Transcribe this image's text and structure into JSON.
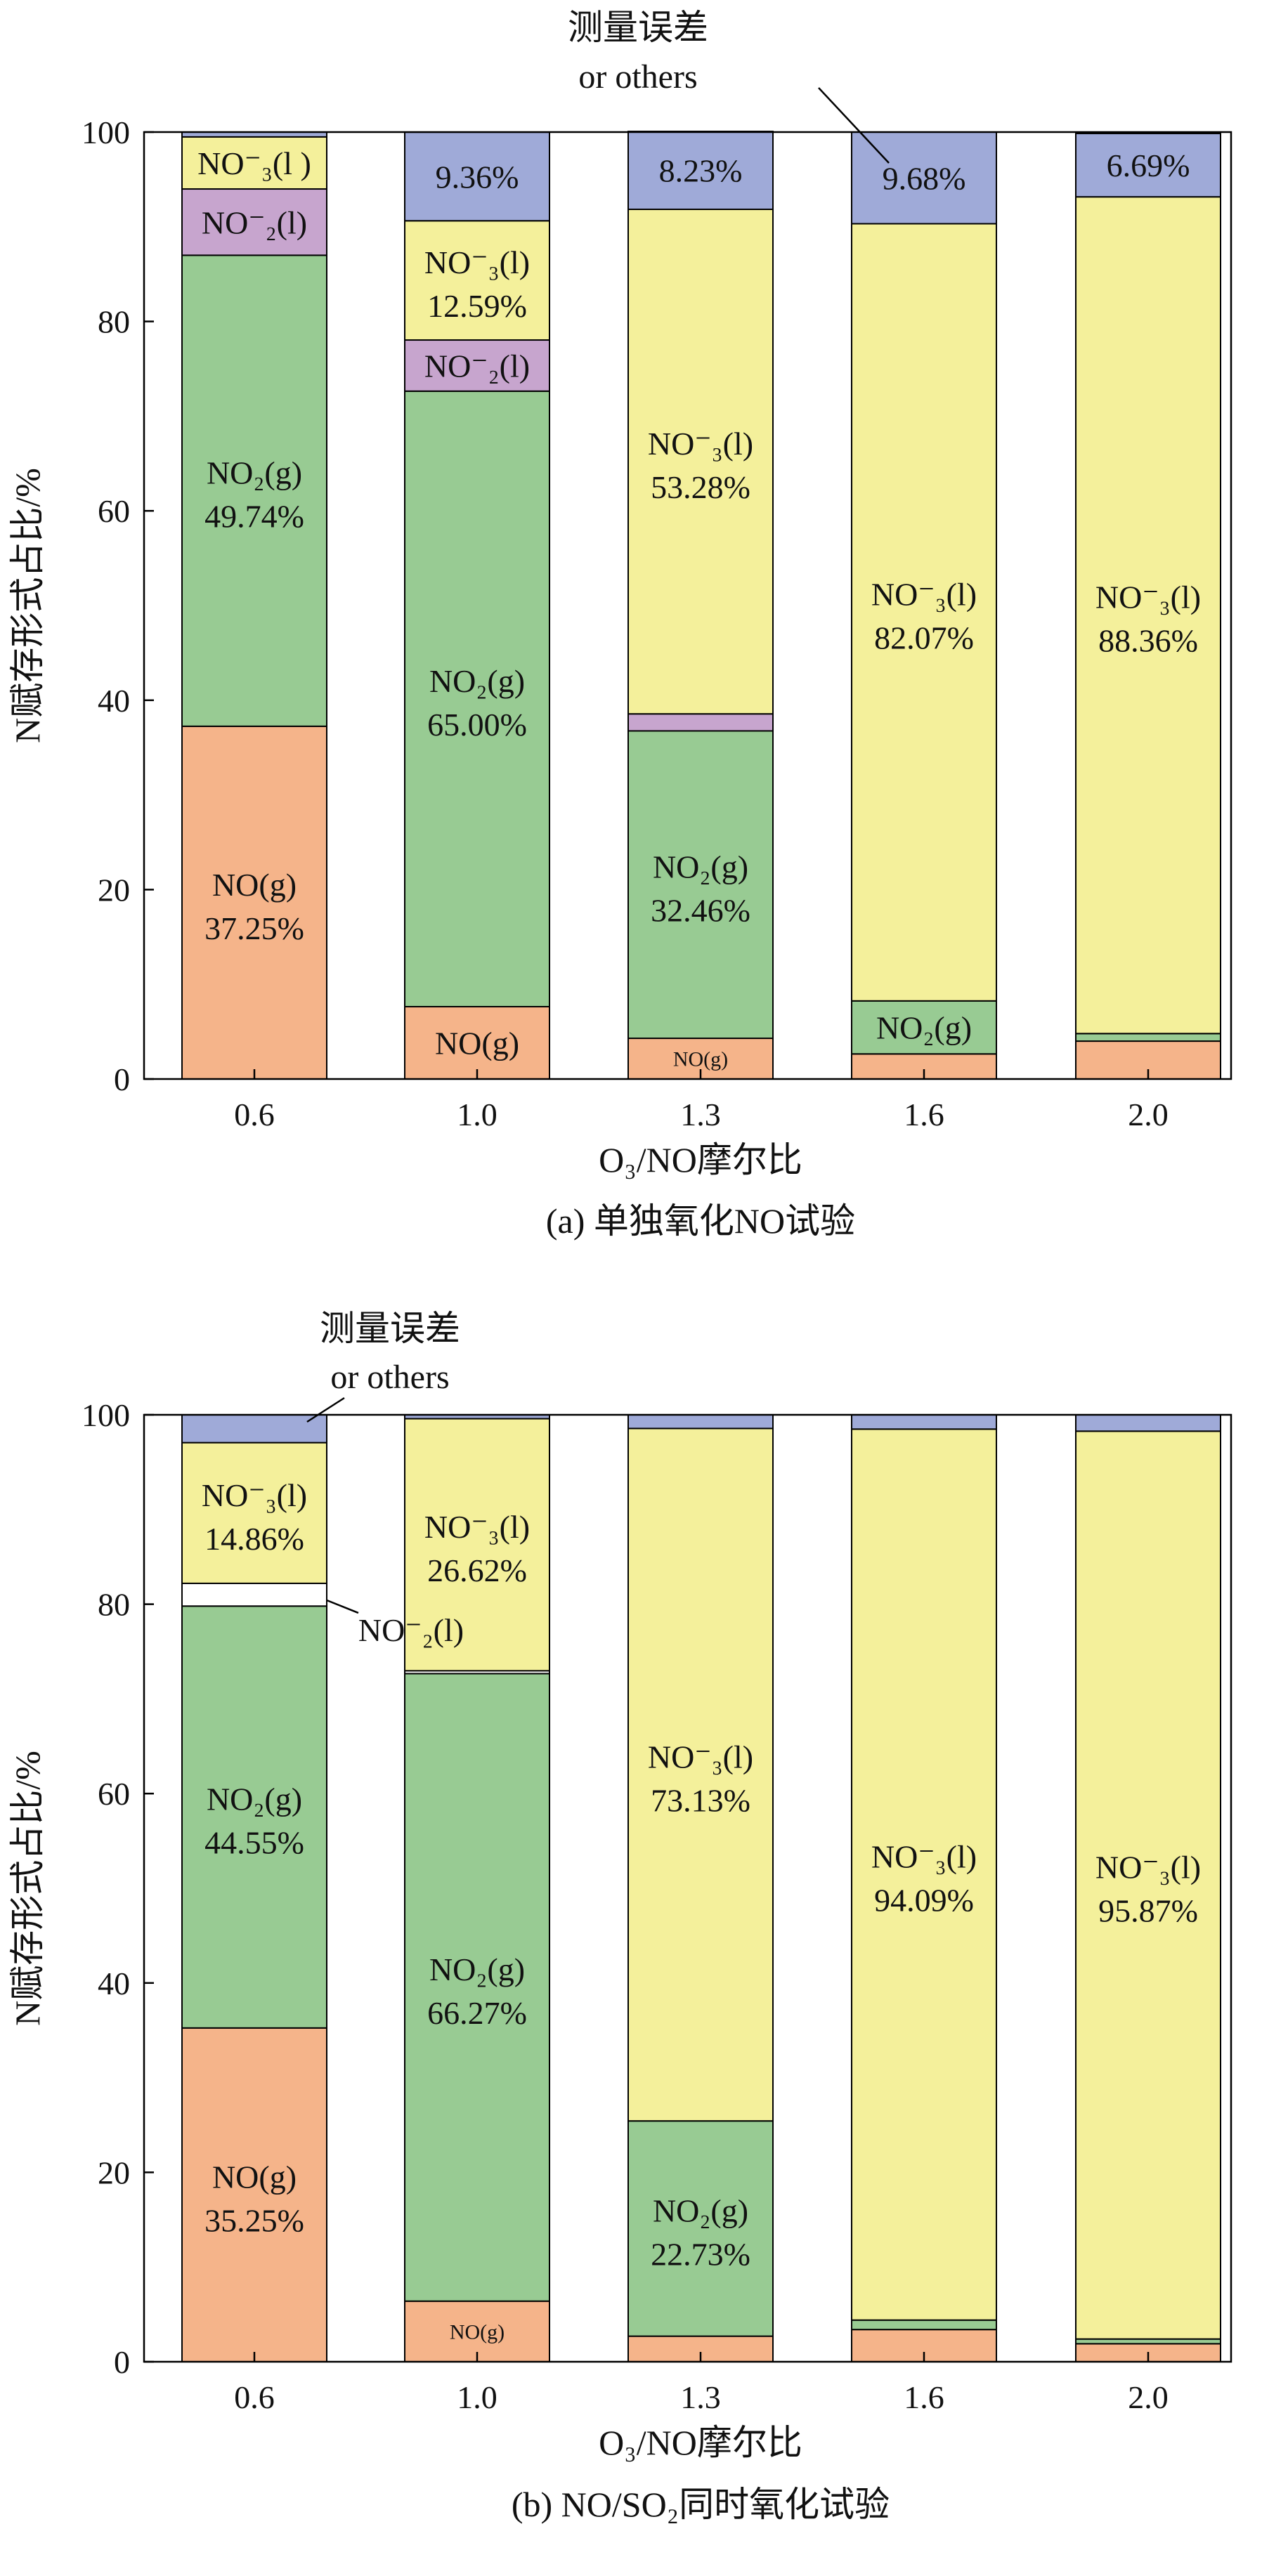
{
  "chart_data": [
    {
      "type": "bar",
      "stacked": true,
      "caption": "(a) 单独氧化NO试验",
      "xlabel": "O₃/NO摩尔比",
      "ylabel": "N赋存形式占比/%",
      "categories": [
        "0.6",
        "1.0",
        "1.3",
        "1.6",
        "2.0"
      ],
      "ylim": [
        0,
        100
      ],
      "yticks": [
        0,
        20,
        40,
        60,
        80,
        100
      ],
      "grid": false,
      "series": [
        {
          "key": "no",
          "color": "#F5B48A",
          "values": [
            37.25,
            7.64,
            4.3,
            2.65,
            4.0
          ]
        },
        {
          "key": "no2",
          "color": "#98CB93",
          "values": [
            49.74,
            65.0,
            32.46,
            5.6,
            0.8
          ]
        },
        {
          "key": "no2l",
          "color": "#C7A5CE",
          "values": [
            7.0,
            5.4,
            1.8,
            0,
            0
          ]
        },
        {
          "key": "no3l",
          "color": "#F4F09B",
          "values": [
            5.5,
            12.59,
            53.28,
            82.07,
            88.36
          ]
        },
        {
          "key": "err",
          "color": "#9FAAD8",
          "values": [
            0.51,
            9.36,
            8.23,
            9.68,
            6.69
          ]
        }
      ],
      "segment_labels": [
        [
          {
            "top": "NO(g)",
            "bottom": "37.25%"
          },
          {
            "top": "NO₂(g)",
            "bottom": "49.74%"
          },
          {
            "top": "NO⁻₂(l)",
            "bottom": ""
          },
          {
            "top": "NO⁻₃(l )",
            "bottom": ""
          },
          null
        ],
        [
          {
            "top": "NO(g)",
            "bottom": ""
          },
          {
            "top": "NO₂(g)",
            "bottom": "65.00%"
          },
          {
            "top": "NO⁻₂(l)",
            "bottom": ""
          },
          {
            "top": "NO⁻₃(l)",
            "bottom": "12.59%"
          },
          {
            "top": "9.36%",
            "bottom": ""
          }
        ],
        [
          {
            "top": "NO(g)",
            "bottom": "",
            "small": true
          },
          {
            "top": "NO₂(g)",
            "bottom": "32.46%"
          },
          null,
          {
            "top": "NO⁻₃(l)",
            "bottom": "53.28%"
          },
          {
            "top": "8.23%",
            "bottom": ""
          }
        ],
        [
          null,
          {
            "top": "NO₂(g)",
            "bottom": ""
          },
          null,
          {
            "top": "NO⁻₃(l)",
            "bottom": "82.07%"
          },
          {
            "top": "9.68%",
            "bottom": ""
          }
        ],
        [
          null,
          null,
          null,
          {
            "top": "NO⁻₃(l)",
            "bottom": "88.36%"
          },
          {
            "top": "6.69%",
            "bottom": ""
          }
        ]
      ],
      "annotation": {
        "line1": "测量误差",
        "line2": "or others"
      }
    },
    {
      "type": "bar",
      "stacked": true,
      "caption": "(b) NO/SO₂同时氧化试验",
      "xlabel": "O₃/NO摩尔比",
      "ylabel": "N赋存形式占比/%",
      "categories": [
        "0.6",
        "1.0",
        "1.3",
        "1.6",
        "2.0"
      ],
      "ylim": [
        0,
        100
      ],
      "yticks": [
        0,
        20,
        40,
        60,
        80,
        100
      ],
      "grid": false,
      "series": [
        {
          "key": "no",
          "color": "#F5B48A",
          "values": [
            35.25,
            6.4,
            2.7,
            3.4,
            1.9
          ]
        },
        {
          "key": "no2",
          "color": "#98CB93",
          "values": [
            44.55,
            66.27,
            22.73,
            1.0,
            0.5
          ]
        },
        {
          "key": "no2l",
          "color": "#FFFFFF",
          "values": [
            2.4,
            0.3,
            0,
            0,
            0
          ]
        },
        {
          "key": "no3l",
          "color": "#F4F09B",
          "values": [
            14.86,
            26.62,
            73.13,
            94.09,
            95.87
          ]
        },
        {
          "key": "err",
          "color": "#9FAAD8",
          "values": [
            2.94,
            0.41,
            1.44,
            1.51,
            1.73
          ]
        }
      ],
      "segment_labels": [
        [
          {
            "top": "NO(g)",
            "bottom": "35.25%"
          },
          {
            "top": "NO₂(g)",
            "bottom": "44.55%"
          },
          null,
          {
            "top": "NO⁻₃(l)",
            "bottom": "14.86%"
          },
          null
        ],
        [
          {
            "top": "NO(g)",
            "bottom": "",
            "small": true
          },
          {
            "top": "NO₂(g)",
            "bottom": "66.27%"
          },
          null,
          {
            "top": "NO⁻₃(l)",
            "bottom": "26.62%"
          },
          null
        ],
        [
          null,
          {
            "top": "NO₂(g)",
            "bottom": "22.73%"
          },
          null,
          {
            "top": "NO⁻₃(l)",
            "bottom": "73.13%"
          },
          null
        ],
        [
          null,
          null,
          null,
          {
            "top": "NO⁻₃(l)",
            "bottom": "94.09%"
          },
          null
        ],
        [
          null,
          null,
          null,
          {
            "top": "NO⁻₃(l)",
            "bottom": "95.87%"
          },
          null
        ]
      ],
      "annotation": {
        "line1": "测量误差",
        "line2": "or others"
      },
      "side_label": "NO⁻₂(l)"
    }
  ]
}
